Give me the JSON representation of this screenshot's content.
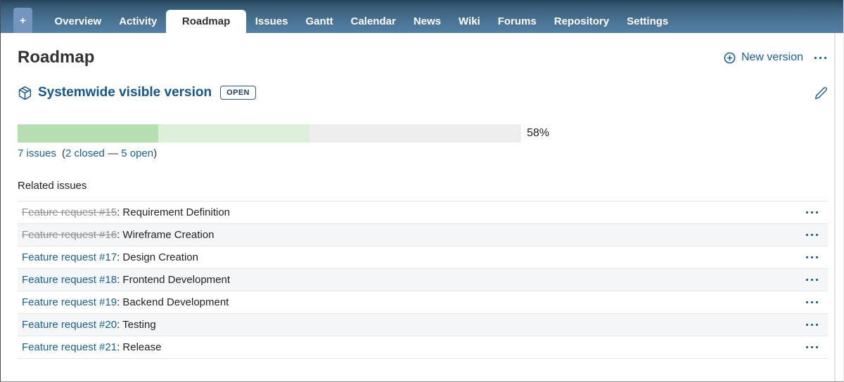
{
  "nav": {
    "plus_label": "+",
    "tabs": [
      {
        "label": "Overview",
        "active": false
      },
      {
        "label": "Activity",
        "active": false
      },
      {
        "label": "Roadmap",
        "active": true
      },
      {
        "label": "Issues",
        "active": false
      },
      {
        "label": "Gantt",
        "active": false
      },
      {
        "label": "Calendar",
        "active": false
      },
      {
        "label": "News",
        "active": false
      },
      {
        "label": "Wiki",
        "active": false
      },
      {
        "label": "Forums",
        "active": false
      },
      {
        "label": "Repository",
        "active": false
      },
      {
        "label": "Settings",
        "active": false
      }
    ]
  },
  "header": {
    "title": "Roadmap",
    "new_version_label": "New version"
  },
  "version": {
    "name": "Systemwide visible version",
    "status_badge": "OPEN",
    "progress": {
      "percent_label": "58%",
      "closed_percent": 28,
      "done_percent": 58
    },
    "issues_summary": {
      "total_link": "7 issues",
      "open_paren": "(",
      "closed_link": "2 closed",
      "separator": " — ",
      "open_link": "5 open",
      "close_paren": ")"
    }
  },
  "related_issues": {
    "heading": "Related issues",
    "rows": [
      {
        "link": "Feature request #15",
        "title": ": Requirement Definition",
        "closed": true
      },
      {
        "link": "Feature request #16",
        "title": ": Wireframe Creation",
        "closed": true
      },
      {
        "link": "Feature request #17",
        "title": ": Design Creation",
        "closed": false
      },
      {
        "link": "Feature request #18",
        "title": ": Frontend Development",
        "closed": false
      },
      {
        "link": "Feature request #19",
        "title": ": Backend Development",
        "closed": false
      },
      {
        "link": "Feature request #20",
        "title": ": Testing",
        "closed": false
      },
      {
        "link": "Feature request #21",
        "title": ": Release",
        "closed": false
      }
    ]
  },
  "colors": {
    "link_blue": "#15619c",
    "nav_top": "#2e4f67",
    "nav_bottom": "#537fa5",
    "progress_closed": "#b5deb1",
    "progress_done": "#dcefd9",
    "progress_track": "#eeeeee"
  }
}
